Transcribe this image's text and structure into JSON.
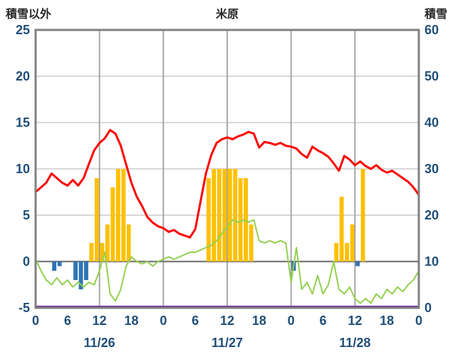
{
  "header": {
    "left_axis_title": "積雪以外",
    "station_title": "米原",
    "right_axis_title": "積雪"
  },
  "chart_data": {
    "type": "line",
    "title": "米原",
    "left_axis": {
      "title": "積雪以外",
      "min": -5,
      "max": 25,
      "ticks": [
        25,
        20,
        15,
        10,
        5,
        0,
        -5
      ]
    },
    "right_axis": {
      "title": "積雪",
      "min": 0,
      "max": 60,
      "ticks": [
        60,
        50,
        40,
        30,
        20,
        10,
        0
      ]
    },
    "x_axis": {
      "hours_total": 72,
      "tick_interval_hours": 6,
      "tick_labels": [
        "0",
        "6",
        "12",
        "18",
        "0",
        "6",
        "12",
        "18",
        "0",
        "6",
        "12",
        "18",
        "0"
      ],
      "date_labels": [
        {
          "center_hour": 12,
          "label": "11/26"
        },
        {
          "center_hour": 36,
          "label": "11/27"
        },
        {
          "center_hour": 60,
          "label": "11/28"
        }
      ],
      "gridline_hours": [
        12,
        24,
        36,
        48,
        60
      ]
    },
    "colors": {
      "red_line": "#ff0000",
      "green_line": "#92d050",
      "yellow_bars": "#ffc000",
      "blue_bars": "#2e75b6",
      "purple_line": "#7030a0",
      "grid_h": "#cccccc",
      "grid_v": "#9e9e9e",
      "zero_line": "#7a7a7a",
      "border": "#808080",
      "axis_text": "#1f4e79",
      "title_text": "#262626"
    },
    "series": [
      {
        "name": "red_line",
        "type": "line",
        "axis": "left",
        "color": "#ff0000",
        "width": 3,
        "values": [
          7.5,
          8.0,
          8.5,
          9.5,
          9.0,
          8.5,
          8.2,
          8.8,
          8.2,
          9.0,
          10.5,
          12.0,
          12.8,
          13.3,
          14.2,
          13.8,
          12.5,
          10.5,
          8.5,
          7.0,
          6.0,
          4.8,
          4.2,
          3.8,
          3.6,
          3.2,
          3.4,
          3.0,
          2.8,
          2.6,
          3.5,
          6.5,
          9.5,
          11.5,
          12.8,
          13.2,
          13.4,
          13.2,
          13.5,
          13.7,
          14.0,
          13.8,
          12.3,
          12.9,
          12.8,
          12.6,
          12.8,
          12.5,
          12.4,
          12.2,
          11.6,
          11.2,
          12.4,
          12.0,
          11.7,
          11.3,
          10.6,
          9.8,
          11.4,
          11.0,
          10.4,
          10.8,
          10.3,
          10.0,
          10.4,
          9.9,
          9.6,
          9.8,
          9.4,
          9.0,
          8.6,
          8.0,
          7.2
        ]
      },
      {
        "name": "green_line",
        "type": "line",
        "axis": "right",
        "color": "#92d050",
        "width": 2,
        "values": [
          10.5,
          8,
          6,
          5,
          6.5,
          5,
          6,
          4.5,
          5.5,
          4.5,
          5.5,
          5,
          8,
          12,
          3,
          1.5,
          4,
          9,
          11,
          10,
          9.5,
          10,
          9,
          10,
          10.5,
          11,
          10.5,
          11,
          11.5,
          12,
          12,
          12.5,
          13,
          13.5,
          14.5,
          16,
          17.5,
          19,
          18.5,
          19,
          18.5,
          19,
          14.5,
          14,
          14.5,
          14,
          14.5,
          14,
          5.5,
          13,
          4,
          5.5,
          3,
          7,
          3,
          5,
          10,
          4,
          3,
          4.5,
          2,
          1,
          2,
          1,
          3,
          2,
          4,
          3,
          4.5,
          3.5,
          5,
          6,
          8
        ]
      },
      {
        "name": "yellow_bars",
        "type": "bar",
        "axis": "left",
        "color": "#ffc000",
        "values": [
          0,
          0,
          0,
          0,
          0,
          0,
          0,
          0,
          0,
          0,
          2,
          9,
          2,
          4,
          8,
          10,
          10,
          4,
          0,
          0,
          0,
          0,
          0,
          0,
          0,
          0,
          0,
          0,
          0,
          0,
          0,
          0,
          9,
          10,
          10,
          10,
          10,
          10,
          9,
          9,
          4,
          0,
          0,
          0,
          0,
          0,
          0,
          0,
          0,
          0,
          0,
          0,
          0,
          0,
          0,
          0,
          2,
          7,
          2,
          4,
          0,
          10,
          0,
          0,
          0,
          0,
          0,
          0,
          0,
          0,
          0,
          0
        ]
      },
      {
        "name": "blue_bars",
        "type": "bar",
        "axis": "left",
        "color": "#2e75b6",
        "values": [
          0,
          0,
          0,
          -1,
          -0.5,
          0,
          0,
          -2,
          -3,
          -2,
          0,
          0,
          0,
          0,
          0,
          0,
          0,
          0,
          0,
          0,
          0,
          0,
          0,
          0,
          0,
          0,
          0,
          0,
          0,
          0,
          0,
          0,
          0,
          0,
          0,
          0,
          0,
          0,
          0,
          0,
          0,
          0,
          0,
          0,
          0,
          0,
          0,
          0,
          -1,
          0,
          0,
          0,
          0,
          0,
          0,
          0,
          0,
          0,
          0,
          0,
          -0.5,
          0,
          0,
          0,
          0,
          0,
          0,
          0,
          0,
          0,
          0,
          0
        ]
      },
      {
        "name": "purple_line",
        "type": "flatline",
        "axis": "left",
        "color": "#7030a0",
        "width": 3,
        "value": -5
      }
    ]
  }
}
